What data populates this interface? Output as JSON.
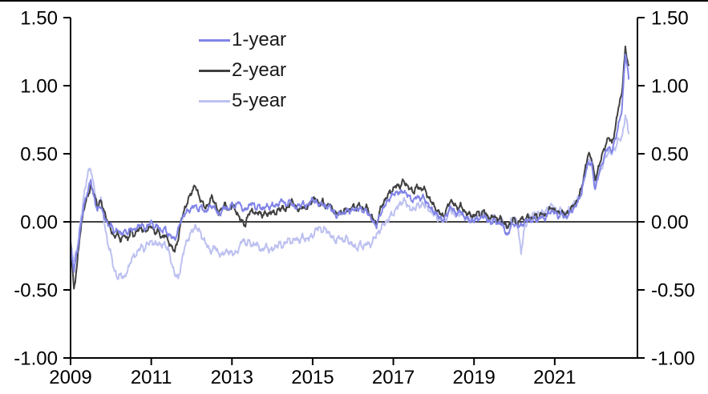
{
  "chart_data": {
    "type": "line",
    "title": "",
    "x_axis": {
      "tick_labels": [
        "2009",
        "2011",
        "2013",
        "2015",
        "2017",
        "2019",
        "2021"
      ],
      "tick_years": [
        2009,
        2011,
        2013,
        2015,
        2017,
        2019,
        2021
      ],
      "range": [
        2009,
        2023.05
      ]
    },
    "y_axis": {
      "tick_labels": [
        "1.50",
        "1.00",
        "0.50",
        "0.00",
        "-0.50",
        "-1.00"
      ],
      "tick_values": [
        1.5,
        1.0,
        0.5,
        0.0,
        -0.5,
        -1.0
      ],
      "range": [
        -1.0,
        1.5
      ],
      "mirrored_right_axis": true,
      "zero_line": true,
      "grid": false
    },
    "legend": {
      "position": "inside-top-left"
    },
    "x_start_year": 2009.0,
    "x_step_months": 1,
    "series": [
      {
        "name": "1-year",
        "color": "#8184e6",
        "values": [
          -0.2,
          -0.35,
          -0.22,
          -0.03,
          0.12,
          0.22,
          0.3,
          0.18,
          0.08,
          0.12,
          0.04,
          -0.02,
          -0.02,
          -0.08,
          -0.05,
          -0.1,
          -0.06,
          -0.09,
          -0.04,
          -0.07,
          -0.03,
          -0.02,
          -0.05,
          -0.03,
          0.0,
          -0.04,
          -0.03,
          -0.07,
          -0.05,
          -0.09,
          -0.11,
          -0.13,
          -0.06,
          0.02,
          0.06,
          0.08,
          0.1,
          0.12,
          0.09,
          0.11,
          0.07,
          0.1,
          0.12,
          0.1,
          0.05,
          0.08,
          0.11,
          0.09,
          0.13,
          0.11,
          0.15,
          0.1,
          0.08,
          0.12,
          0.14,
          0.1,
          0.12,
          0.09,
          0.12,
          0.1,
          0.13,
          0.11,
          0.14,
          0.16,
          0.12,
          0.15,
          0.13,
          0.1,
          0.12,
          0.14,
          0.11,
          0.14,
          0.16,
          0.15,
          0.12,
          0.14,
          0.1,
          0.12,
          0.08,
          0.04,
          0.07,
          0.05,
          0.09,
          0.07,
          0.1,
          0.08,
          0.11,
          0.07,
          0.09,
          0.04,
          0.0,
          -0.03,
          0.05,
          0.1,
          0.14,
          0.18,
          0.2,
          0.22,
          0.21,
          0.23,
          0.2,
          0.18,
          0.15,
          0.19,
          0.17,
          0.18,
          0.14,
          0.1,
          0.08,
          0.05,
          0.03,
          0.01,
          0.06,
          0.11,
          0.08,
          0.06,
          0.08,
          0.04,
          0.02,
          0.01,
          0.0,
          0.03,
          0.02,
          0.05,
          0.01,
          -0.01,
          0.02,
          -0.02,
          0.0,
          -0.06,
          -0.1,
          -0.03,
          -0.01,
          -0.04,
          -0.02,
          -0.01,
          0.02,
          0.0,
          0.03,
          0.01,
          0.04,
          0.02,
          0.06,
          0.08,
          0.07,
          0.04,
          0.06,
          0.03,
          0.05,
          0.08,
          0.11,
          0.15,
          0.22,
          0.34,
          0.44,
          0.42,
          0.24,
          0.34,
          0.42,
          0.5,
          0.55,
          0.52,
          0.6,
          0.72,
          0.82,
          1.25,
          1.05
        ]
      },
      {
        "name": "2-year",
        "color": "#404040",
        "values": [
          -0.15,
          -0.5,
          -0.3,
          -0.05,
          0.1,
          0.18,
          0.26,
          0.2,
          0.12,
          0.15,
          0.08,
          0.0,
          -0.05,
          -0.12,
          -0.08,
          -0.14,
          -0.09,
          -0.13,
          -0.07,
          -0.1,
          -0.06,
          -0.04,
          -0.08,
          -0.05,
          -0.03,
          -0.08,
          -0.06,
          -0.12,
          -0.09,
          -0.14,
          -0.18,
          -0.22,
          -0.12,
          0.02,
          0.1,
          0.16,
          0.22,
          0.27,
          0.2,
          0.15,
          0.1,
          0.13,
          0.18,
          0.14,
          0.06,
          0.1,
          0.13,
          0.08,
          0.12,
          0.09,
          0.04,
          0.0,
          -0.02,
          0.06,
          0.09,
          0.05,
          0.08,
          0.04,
          0.07,
          0.05,
          0.08,
          0.06,
          0.09,
          0.11,
          0.08,
          0.13,
          0.15,
          0.11,
          0.08,
          0.12,
          0.09,
          0.13,
          0.16,
          0.17,
          0.13,
          0.15,
          0.11,
          0.13,
          0.09,
          0.05,
          0.08,
          0.06,
          0.1,
          0.08,
          0.12,
          0.1,
          0.13,
          0.09,
          0.11,
          0.06,
          0.02,
          -0.02,
          0.08,
          0.14,
          0.18,
          0.22,
          0.24,
          0.27,
          0.26,
          0.3,
          0.27,
          0.24,
          0.22,
          0.26,
          0.24,
          0.25,
          0.2,
          0.16,
          0.12,
          0.08,
          0.06,
          0.04,
          0.1,
          0.16,
          0.13,
          0.1,
          0.12,
          0.08,
          0.06,
          0.05,
          0.04,
          0.07,
          0.05,
          0.08,
          0.04,
          0.02,
          0.05,
          0.01,
          0.03,
          -0.02,
          -0.04,
          0.0,
          0.02,
          -0.02,
          0.03,
          0.01,
          0.04,
          0.02,
          0.05,
          0.03,
          0.06,
          0.04,
          0.08,
          0.1,
          0.09,
          0.06,
          0.08,
          0.05,
          0.07,
          0.1,
          0.13,
          0.17,
          0.25,
          0.38,
          0.5,
          0.47,
          0.3,
          0.4,
          0.48,
          0.56,
          0.62,
          0.58,
          0.68,
          0.85,
          0.95,
          1.27,
          1.15
        ]
      },
      {
        "name": "5-year",
        "color": "#bdc1f0",
        "values": [
          -0.15,
          -0.3,
          -0.18,
          0.0,
          0.2,
          0.34,
          0.4,
          0.25,
          0.12,
          0.18,
          0.0,
          -0.15,
          -0.24,
          -0.35,
          -0.42,
          -0.38,
          -0.42,
          -0.35,
          -0.28,
          -0.25,
          -0.22,
          -0.18,
          -0.2,
          -0.16,
          -0.14,
          -0.17,
          -0.15,
          -0.18,
          -0.16,
          -0.2,
          -0.3,
          -0.38,
          -0.42,
          -0.3,
          -0.18,
          -0.12,
          -0.08,
          -0.03,
          -0.06,
          -0.1,
          -0.15,
          -0.19,
          -0.22,
          -0.18,
          -0.23,
          -0.25,
          -0.21,
          -0.23,
          -0.22,
          -0.24,
          -0.2,
          -0.13,
          -0.16,
          -0.14,
          -0.18,
          -0.15,
          -0.19,
          -0.21,
          -0.18,
          -0.2,
          -0.21,
          -0.18,
          -0.16,
          -0.18,
          -0.15,
          -0.13,
          -0.15,
          -0.12,
          -0.14,
          -0.11,
          -0.13,
          -0.12,
          -0.1,
          -0.06,
          -0.04,
          -0.07,
          -0.05,
          -0.09,
          -0.12,
          -0.14,
          -0.11,
          -0.14,
          -0.12,
          -0.15,
          -0.17,
          -0.2,
          -0.16,
          -0.19,
          -0.15,
          -0.18,
          -0.13,
          -0.1,
          -0.06,
          -0.02,
          0.0,
          0.04,
          0.06,
          0.1,
          0.13,
          0.16,
          0.13,
          0.1,
          0.08,
          0.13,
          0.11,
          0.14,
          0.1,
          0.08,
          0.06,
          0.03,
          0.02,
          0.0,
          0.04,
          0.09,
          0.06,
          0.04,
          0.07,
          0.03,
          0.02,
          0.03,
          0.02,
          0.05,
          0.04,
          0.07,
          0.03,
          0.01,
          0.04,
          0.0,
          0.02,
          -0.02,
          -0.05,
          0.01,
          0.03,
          -0.02,
          -0.23,
          -0.05,
          0.02,
          0.04,
          0.07,
          0.05,
          0.08,
          0.06,
          0.1,
          0.12,
          0.1,
          0.07,
          0.09,
          0.06,
          0.08,
          0.11,
          0.14,
          0.18,
          0.24,
          0.35,
          0.46,
          0.44,
          0.27,
          0.35,
          0.4,
          0.47,
          0.52,
          0.5,
          0.55,
          0.6,
          0.62,
          0.78,
          0.65
        ]
      }
    ],
    "draw_order": [
      2,
      1,
      0
    ],
    "style": {
      "line_width": 2,
      "noise_amplitude": [
        0.025,
        0.025,
        0.03
      ],
      "axis_color": "#000000",
      "background": "#ffffff"
    }
  }
}
